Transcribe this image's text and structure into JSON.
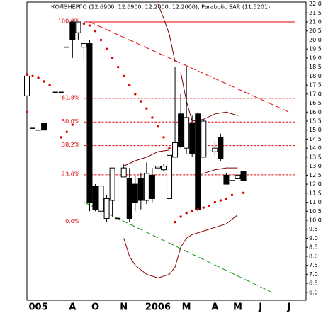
{
  "chart_data": {
    "type": "candlestick",
    "title": "КОЛЭНЕРГО (12.6900, 12.6900, 12.2000, 12.2000), Parabolic SAR (11.5201)",
    "xlim": [
      0,
      49
    ],
    "ylim": [
      5.56,
      22.1
    ],
    "yticks": [
      {
        "value": 6,
        "label": "6.0"
      },
      6.5,
      {
        "value": 7,
        "label": "7.0"
      },
      7.5,
      {
        "value": 8,
        "label": "8.0"
      },
      8.5,
      {
        "value": 9,
        "label": "9.0"
      },
      9.5,
      {
        "value": 10,
        "label": "10.0"
      },
      10.5,
      {
        "value": 11,
        "label": "11.0"
      },
      11.5,
      {
        "value": 12,
        "label": "12.0"
      },
      12.5,
      {
        "value": 13,
        "label": "13.0"
      },
      13.5,
      {
        "value": 14,
        "label": "14.0"
      },
      14.5,
      {
        "value": 15,
        "label": "15.0"
      },
      15.5,
      {
        "value": 16,
        "label": "16.0"
      },
      16.5,
      {
        "value": 17,
        "label": "17.0"
      },
      17.5,
      {
        "value": 18,
        "label": "18.0"
      },
      18.5,
      {
        "value": 19,
        "label": "19.0"
      },
      19.5,
      {
        "value": 20,
        "label": "20.0"
      },
      20.5,
      {
        "value": 21,
        "label": "21.0"
      },
      21.5,
      {
        "value": 22,
        "label": "22.0"
      }
    ],
    "xticks": [
      {
        "value": 2,
        "label": "005"
      },
      {
        "value": 8,
        "label": "A"
      },
      {
        "value": 12,
        "label": "O"
      },
      {
        "value": 17,
        "label": "N"
      },
      {
        "value": 23,
        "label": "2006"
      },
      {
        "value": 28,
        "label": "M"
      },
      {
        "value": 33,
        "label": "A"
      },
      {
        "value": 37,
        "label": "M"
      },
      {
        "value": 41,
        "label": "J"
      },
      {
        "value": 46,
        "label": "J"
      }
    ],
    "candles": [
      {
        "x": 0,
        "open": 16.9,
        "high": 18.1,
        "low": 16.8,
        "close": 18.0
      },
      {
        "x": 1,
        "open": 15.1,
        "high": 15.1,
        "low": 15.1,
        "close": 15.1
      },
      {
        "x": 2,
        "open": 15.0,
        "high": 15.0,
        "low": 15.0,
        "close": 15.0
      },
      {
        "x": 3,
        "open": 15.4,
        "high": 15.4,
        "low": 15.0,
        "close": 15.0
      },
      {
        "x": 5,
        "open": 17.1,
        "high": 17.1,
        "low": 17.1,
        "close": 17.1
      },
      {
        "x": 6,
        "open": 17.1,
        "high": 17.1,
        "low": 17.1,
        "close": 17.1
      },
      {
        "x": 7,
        "open": 19.6,
        "high": 19.6,
        "low": 19.6,
        "close": 19.6
      },
      {
        "x": 8,
        "open": 21.0,
        "high": 21.1,
        "low": 19.0,
        "close": 20.0
      },
      {
        "x": 9,
        "open": 20.4,
        "high": 21.0,
        "low": 20.0,
        "close": 21.0
      },
      {
        "x": 10,
        "open": 19.6,
        "high": 20.0,
        "low": 18.8,
        "close": 19.8
      },
      {
        "x": 11,
        "open": 19.8,
        "high": 20.0,
        "low": 10.5,
        "close": 11.0
      },
      {
        "x": 12,
        "open": 11.9,
        "high": 12.0,
        "low": 10.5,
        "close": 10.6
      },
      {
        "x": 13,
        "open": 10.5,
        "high": 12.0,
        "low": 10.0,
        "close": 11.9
      },
      {
        "x": 14,
        "open": 10.1,
        "high": 11.4,
        "low": 9.9,
        "close": 11.2
      },
      {
        "x": 15,
        "open": 11.1,
        "high": 12.9,
        "low": 10.2,
        "close": 12.9
      },
      {
        "x": 16,
        "open": 10.1,
        "high": 10.1,
        "low": 10.1,
        "close": 10.1
      },
      {
        "x": 17,
        "open": 12.4,
        "high": 13.1,
        "low": 12.4,
        "close": 12.9
      },
      {
        "x": 18,
        "open": 12.3,
        "high": 12.9,
        "low": 9.9,
        "close": 10.1
      },
      {
        "x": 19,
        "open": 12.0,
        "high": 12.5,
        "low": 10.5,
        "close": 11.0
      },
      {
        "x": 20,
        "open": 12.3,
        "high": 12.6,
        "low": 10.6,
        "close": 11.1
      },
      {
        "x": 21,
        "open": 11.1,
        "high": 13.2,
        "low": 10.9,
        "close": 12.6
      },
      {
        "x": 22,
        "open": 12.5,
        "high": 12.9,
        "low": 11.0,
        "close": 11.2
      },
      {
        "x": 23,
        "open": 12.9,
        "high": 13.0,
        "low": 12.9,
        "close": 13.0
      },
      {
        "x": 24,
        "open": 12.8,
        "high": 13.1,
        "low": 12.7,
        "close": 13.0
      },
      {
        "x": 25,
        "open": 11.2,
        "high": 13.6,
        "low": 11.2,
        "close": 13.6
      },
      {
        "x": 26,
        "open": 13.5,
        "high": 18.5,
        "low": 13.5,
        "close": 14.3
      },
      {
        "x": 27,
        "open": 15.9,
        "high": 17.0,
        "low": 14.0,
        "close": 14.1
      },
      {
        "x": 28,
        "open": 14.0,
        "high": 18.5,
        "low": 13.7,
        "close": 15.7
      },
      {
        "x": 29,
        "open": 15.4,
        "high": 15.8,
        "low": 13.5,
        "close": 13.7
      },
      {
        "x": 30,
        "open": 15.9,
        "high": 16.0,
        "low": 10.5,
        "close": 10.6
      },
      {
        "x": 31,
        "open": 13.5,
        "high": 15.6,
        "low": 13.5,
        "close": 15.5
      },
      {
        "x": 33,
        "open": 13.8,
        "high": 14.4,
        "low": 13.6,
        "close": 14.0
      },
      {
        "x": 34,
        "open": 14.6,
        "high": 14.8,
        "low": 13.3,
        "close": 13.4
      },
      {
        "x": 35,
        "open": 12.5,
        "high": 12.6,
        "low": 12.0,
        "close": 12.0
      },
      {
        "x": 36,
        "open": 12.2,
        "high": 12.2,
        "low": 12.2,
        "close": 12.2
      },
      {
        "x": 37,
        "open": 12.3,
        "high": 12.5,
        "low": 12.3,
        "close": 12.5
      },
      {
        "x": 38,
        "open": 12.69,
        "high": 12.69,
        "low": 12.2,
        "close": 12.2
      }
    ],
    "sar": {
      "color": "#e00000",
      "x": [
        0,
        1,
        2,
        3,
        4,
        0,
        6,
        7,
        8,
        10,
        11,
        12,
        13,
        14,
        15,
        16,
        17,
        18,
        19,
        20,
        21,
        22,
        23,
        24,
        25,
        26,
        27,
        28,
        29,
        30,
        31,
        32,
        33,
        34,
        35,
        36,
        38
      ],
      "values": [
        18.1,
        18.0,
        17.9,
        17.7,
        17.5,
        16.0,
        14.6,
        14.9,
        15.3,
        20.9,
        20.8,
        20.5,
        20.0,
        19.5,
        19.0,
        18.5,
        18.0,
        17.5,
        17.0,
        16.6,
        16.2,
        15.7,
        15.2,
        14.6,
        14.0,
        9.9,
        10.2,
        10.4,
        10.5,
        10.6,
        10.7,
        10.8,
        11.0,
        11.1,
        11.2,
        11.4,
        11.52
      ]
    },
    "bands": [
      {
        "color": "#800000",
        "x": [
          17,
          19,
          21,
          23,
          25,
          26,
          27,
          28,
          29,
          31,
          33,
          35,
          37
        ],
        "values": [
          13.0,
          13.3,
          13.5,
          13.8,
          13.9,
          null,
          18.2,
          16.6,
          15.5,
          15.6,
          15.9,
          16.0,
          15.8
        ]
      },
      {
        "color": "#800000",
        "x": [
          23,
          24,
          25,
          26
        ],
        "values": [
          22.0,
          21.2,
          20.3,
          18.8
        ]
      },
      {
        "color": "#800000",
        "x": [
          30,
          31,
          33,
          35,
          37
        ],
        "values": [
          12.6,
          12.6,
          12.8,
          12.9,
          12.9
        ]
      },
      {
        "color": "#800000",
        "x": [
          17,
          18,
          19,
          21,
          23,
          25,
          26,
          27,
          28,
          29,
          31,
          33,
          35,
          37
        ],
        "values": [
          9.0,
          8.0,
          7.5,
          7.0,
          6.8,
          7.0,
          7.4,
          8.5,
          9.0,
          9.2,
          9.4,
          9.6,
          9.8,
          10.3
        ]
      }
    ],
    "trendlines": [
      {
        "color": "#e00000",
        "x": [
          11,
          46
        ],
        "values": [
          21.0,
          16.0
        ]
      },
      {
        "color": "#109010",
        "x": [
          10,
          43
        ],
        "values": [
          11.0,
          6.0
        ]
      }
    ],
    "fibonacci": {
      "color": "#e00000",
      "low": 9.9,
      "high": 21.0,
      "x": [
        10,
        47
      ],
      "levels": [
        {
          "value": 100,
          "label": "100.0%"
        },
        {
          "value": 61.8,
          "label": "61.8%"
        },
        {
          "value": 50,
          "label": "50.0%"
        },
        {
          "value": 38.2,
          "label": "38.2%"
        },
        {
          "value": 23.6,
          "label": "23.6%"
        },
        {
          "value": 0,
          "label": "0.0%"
        }
      ]
    }
  }
}
